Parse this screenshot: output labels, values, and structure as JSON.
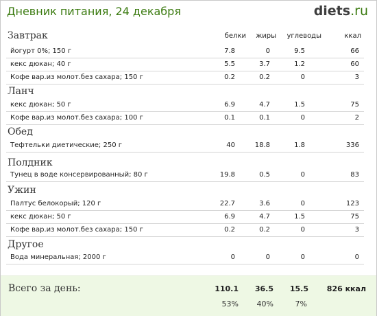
{
  "header": {
    "title": "Дневник питания, 24 декабря",
    "logo_main": "diets",
    "logo_tld": ".ru"
  },
  "columns": [
    "белки",
    "жиры",
    "углеводы",
    "ккал"
  ],
  "meals": [
    {
      "name": "Завтрак",
      "items": [
        {
          "name": "йогурт 0%; 150 г",
          "protein": "7.8",
          "fat": "0",
          "carbs": "9.5",
          "kcal": "66"
        },
        {
          "name": "кекс дюкан; 40 г",
          "protein": "5.5",
          "fat": "3.7",
          "carbs": "1.2",
          "kcal": "60"
        },
        {
          "name": "Кофе вар.из молот.без сахара; 150 г",
          "protein": "0.2",
          "fat": "0.2",
          "carbs": "0",
          "kcal": "3"
        }
      ]
    },
    {
      "name": "Ланч",
      "items": [
        {
          "name": "кекс дюкан; 50 г",
          "protein": "6.9",
          "fat": "4.7",
          "carbs": "1.5",
          "kcal": "75"
        },
        {
          "name": "Кофе вар.из молот.без сахара; 100 г",
          "protein": "0.1",
          "fat": "0.1",
          "carbs": "0",
          "kcal": "2"
        }
      ]
    },
    {
      "name": "Обед",
      "items": [
        {
          "name": "Тефтельки диетические; 250 г",
          "protein": "40",
          "fat": "18.8",
          "carbs": "1.8",
          "kcal": "336"
        }
      ]
    },
    {
      "name": "Полдник",
      "items": [
        {
          "name": "Тунец в воде консервированный; 80 г",
          "protein": "19.8",
          "fat": "0.5",
          "carbs": "0",
          "kcal": "83"
        }
      ]
    },
    {
      "name": "Ужин",
      "items": [
        {
          "name": "Палтус белокорый; 120 г",
          "protein": "22.7",
          "fat": "3.6",
          "carbs": "0",
          "kcal": "123"
        },
        {
          "name": "кекс дюкан; 50 г",
          "protein": "6.9",
          "fat": "4.7",
          "carbs": "1.5",
          "kcal": "75"
        },
        {
          "name": "Кофе вар.из молот.без сахара; 150 г",
          "protein": "0.2",
          "fat": "0.2",
          "carbs": "0",
          "kcal": "3"
        }
      ]
    },
    {
      "name": "Другое",
      "items": [
        {
          "name": "Вода минеральная; 2000 г",
          "protein": "0",
          "fat": "0",
          "carbs": "0",
          "kcal": "0"
        }
      ]
    }
  ],
  "total": {
    "label": "Всего за день:",
    "protein": "110.1",
    "fat": "36.5",
    "carbs": "15.5",
    "kcal": "826 ккал",
    "protein_pct": "53%",
    "fat_pct": "40%",
    "carbs_pct": "7%"
  },
  "colors": {
    "title": "#3a7a0f",
    "total_bg": "#eef8e4"
  }
}
